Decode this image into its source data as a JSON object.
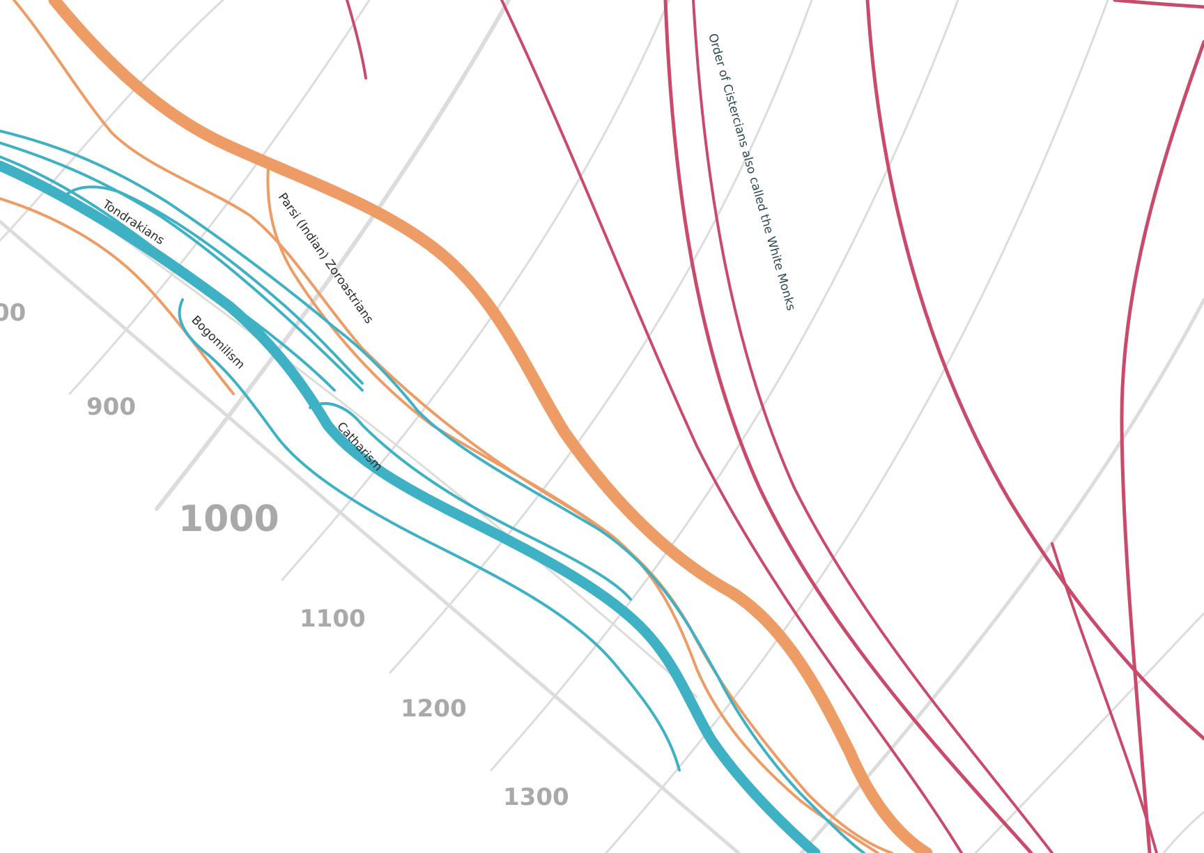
{
  "timeline": {
    "year_labels": [
      "00",
      "900",
      "1000",
      "1100",
      "1200",
      "1300"
    ]
  },
  "colors": {
    "background": "#ffffff",
    "grid": "#d9d9d9",
    "orange": "#ee9c66",
    "teal": "#3fb1c4",
    "crimson": "#c94a6b",
    "year_label": "#a9a9a9"
  },
  "labels": {
    "tondrakians": "Tondrakians",
    "bogomilism": "Bogomilism",
    "catharism": "Catharism",
    "parsi": "Parsi (Indian) Zoroastrians",
    "cistercians": "Order of Cistercians also called the White Monks"
  }
}
